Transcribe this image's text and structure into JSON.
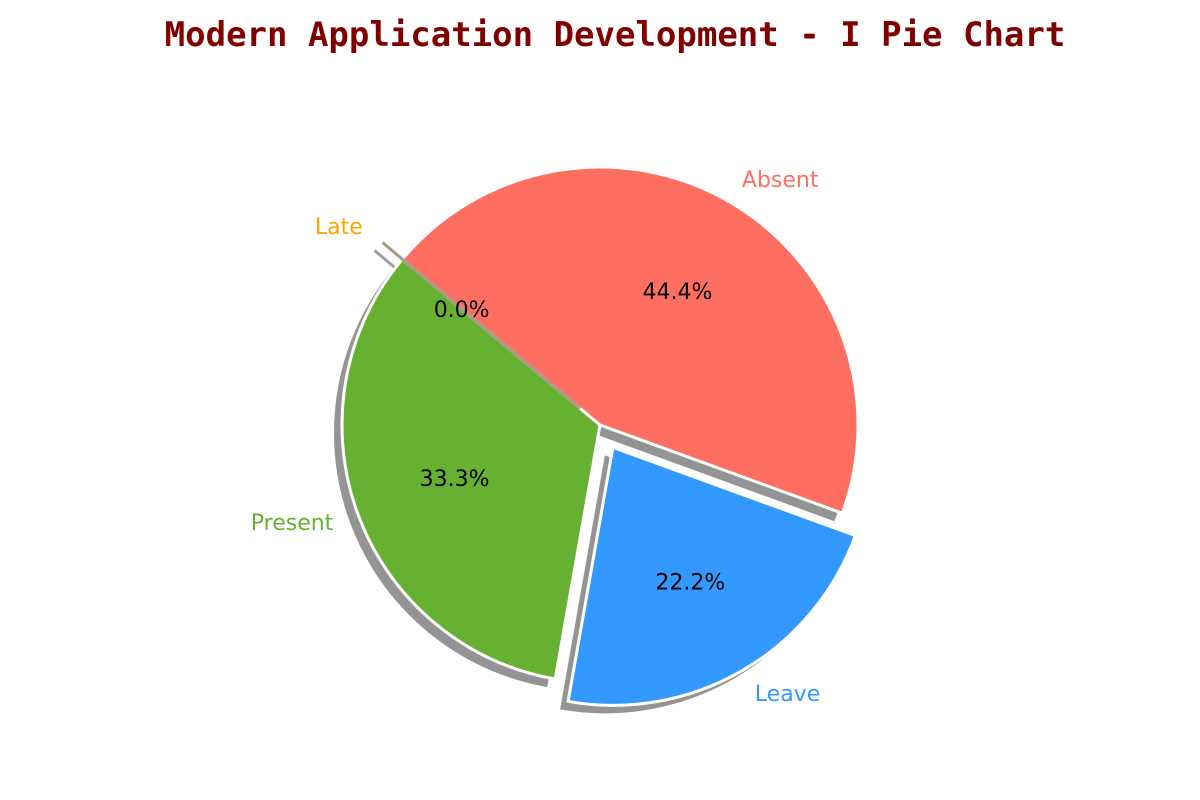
{
  "chart_data": {
    "type": "pie",
    "title": "Modern Application Development - I Pie Chart",
    "title_color": "#800000",
    "slices": [
      {
        "label": "Present",
        "value": 33.3,
        "pct_text": "33.3%",
        "color": "#66b032",
        "exploded": false
      },
      {
        "label": "Leave",
        "value": 22.2,
        "pct_text": "22.2%",
        "color": "#3399ff",
        "exploded": true
      },
      {
        "label": "Absent",
        "value": 44.4,
        "pct_text": "44.4%",
        "color": "#ff6f61",
        "exploded": false
      },
      {
        "label": "Late",
        "value": 0.0,
        "pct_text": "0.0%",
        "color": "#ffa500",
        "exploded": true
      }
    ],
    "start_angle": 140,
    "direction": "counterclockwise",
    "shadow": true
  }
}
